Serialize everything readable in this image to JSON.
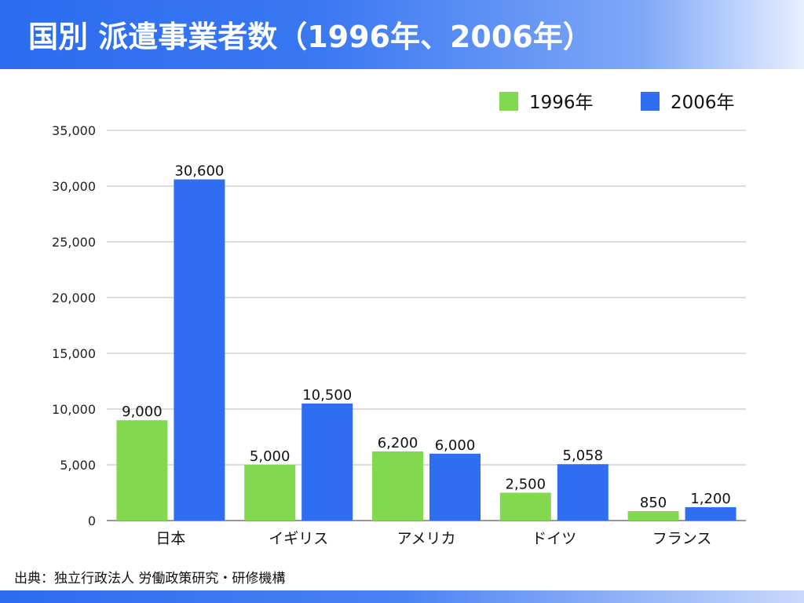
{
  "title": "国別 派遣事業者数（1996年、2006年）",
  "source": "出典：独立行政法人 労働政策研究・研修機構",
  "chart_data": {
    "type": "bar",
    "title": "国別 派遣事業者数（1996年、2006年）",
    "categories": [
      "日本",
      "イギリス",
      "アメリカ",
      "ドイツ",
      "フランス"
    ],
    "series": [
      {
        "name": "1996年",
        "color": "#82d94f",
        "values": [
          9000,
          5000,
          6200,
          2500,
          850
        ],
        "labels": [
          "9,000",
          "5,000",
          "6,200",
          "2,500",
          "850"
        ]
      },
      {
        "name": "2006年",
        "color": "#2f6ef0",
        "values": [
          30600,
          10500,
          6000,
          5058,
          1200
        ],
        "labels": [
          "30,600",
          "10,500",
          "6,000",
          "5,058",
          "1,200"
        ]
      }
    ],
    "ylim": [
      0,
      35000
    ],
    "yticks": [
      0,
      5000,
      10000,
      15000,
      20000,
      25000,
      30000,
      35000
    ],
    "ytick_labels": [
      "0",
      "5,000",
      "10,000",
      "15,000",
      "20,000",
      "25,000",
      "30,000",
      "35,000"
    ],
    "grid": true,
    "legend_position": "top-right",
    "xlabel": "",
    "ylabel": ""
  }
}
